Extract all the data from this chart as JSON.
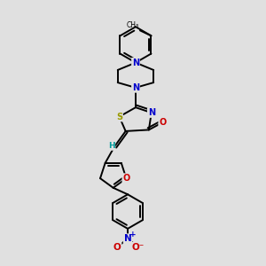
{
  "background_color": "#e0e0e0",
  "bond_color": "#000000",
  "atom_colors": {
    "S": "#999900",
    "N": "#0000cc",
    "O": "#cc0000",
    "C": "#000000",
    "H": "#009999"
  },
  "figsize": [
    3.0,
    3.0
  ],
  "dpi": 100
}
